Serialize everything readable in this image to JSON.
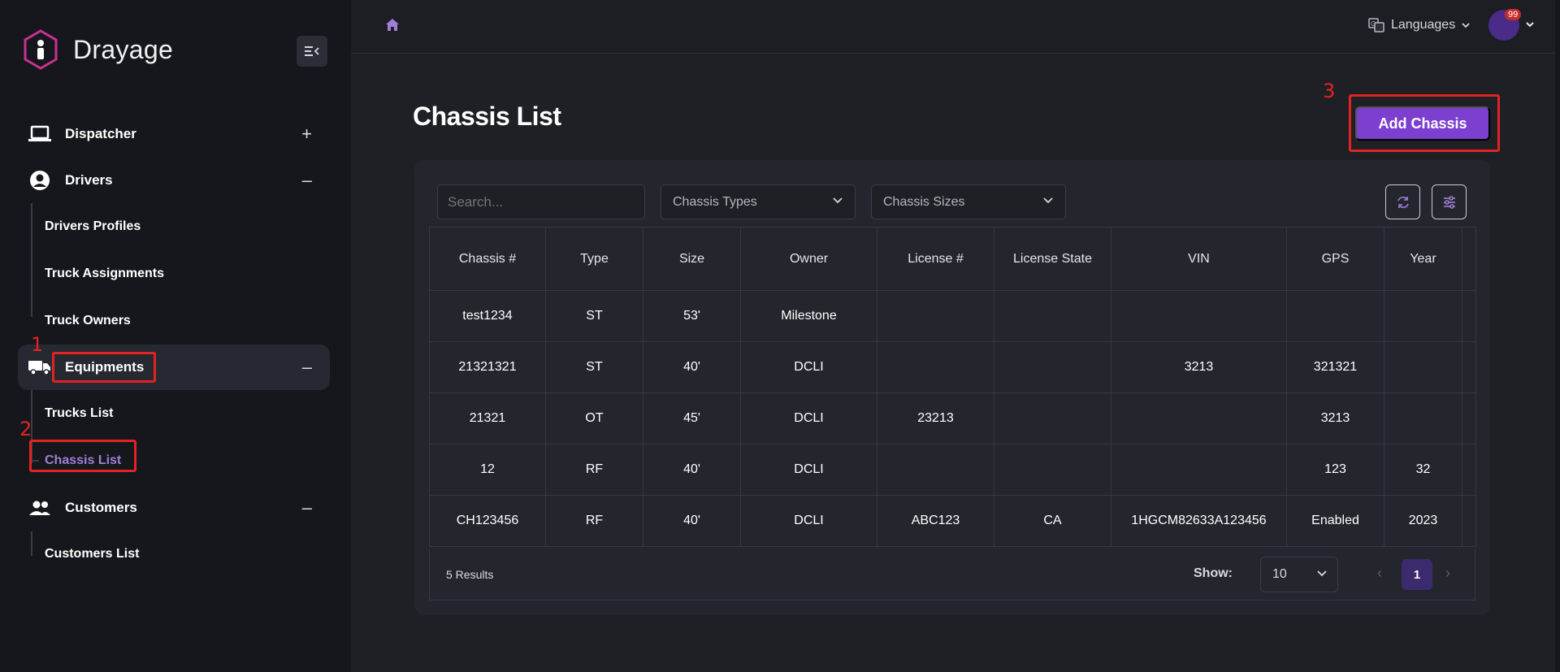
{
  "app": {
    "name": "Drayage"
  },
  "sidebar": {
    "groups": [
      {
        "label": "Dispatcher",
        "icon": "laptop-icon",
        "toggle": "+"
      },
      {
        "label": "Drivers",
        "icon": "user-circle-icon",
        "toggle": "–",
        "items": [
          "Drivers Profiles",
          "Truck Assignments",
          "Truck Owners"
        ]
      },
      {
        "label": "Equipments",
        "icon": "truck-icon",
        "toggle": "–",
        "items": [
          "Trucks List",
          "Chassis List"
        ]
      },
      {
        "label": "Customers",
        "icon": "users-icon",
        "toggle": "–",
        "items": [
          "Customers List"
        ]
      }
    ]
  },
  "topbar": {
    "languages_label": "Languages",
    "badge_count": "99"
  },
  "annotations": [
    "1",
    "2",
    "3"
  ],
  "main": {
    "title": "Chassis List",
    "add_button": "Add Chassis",
    "search_placeholder": "Search...",
    "filters": {
      "types": "Chassis Types",
      "sizes": "Chassis Sizes"
    },
    "columns": [
      "Chassis #",
      "Type",
      "Size",
      "Owner",
      "License #",
      "License State",
      "VIN",
      "GPS",
      "Year"
    ],
    "rows": [
      [
        "test1234",
        "ST",
        "53'",
        "Milestone",
        "",
        "",
        "",
        "",
        ""
      ],
      [
        "21321321",
        "ST",
        "40'",
        "DCLI",
        "",
        "",
        "3213",
        "321321",
        ""
      ],
      [
        "21321",
        "OT",
        "45'",
        "DCLI",
        "23213",
        "",
        "",
        "3213",
        ""
      ],
      [
        "12",
        "RF",
        "40'",
        "DCLI",
        "",
        "",
        "",
        "123",
        "32"
      ],
      [
        "CH123456",
        "RF",
        "40'",
        "DCLI",
        "ABC123",
        "CA",
        "1HGCM82633A123456",
        "Enabled",
        "2023"
      ]
    ],
    "results_text": "5 Results",
    "show_label": "Show:",
    "page_size": "10",
    "current_page": "1"
  },
  "colors": {
    "accent": "#7c3fd0",
    "active_link": "#9f7fd6",
    "annotation": "#e12323"
  }
}
